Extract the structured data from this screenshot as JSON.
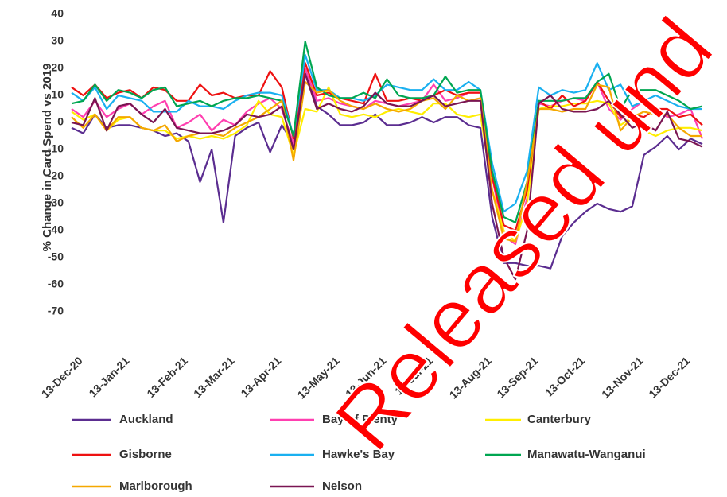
{
  "chart_data": {
    "type": "line",
    "y_label": "% Change in Card Spend vs 2019",
    "watermark": "Released und",
    "legend": "bottom",
    "grid": false,
    "ylim": [
      -70,
      40
    ],
    "yticks": [
      40,
      30,
      20,
      10,
      0,
      -10,
      -20,
      -30,
      -40,
      -50,
      -60,
      -70
    ],
    "categories": [
      "13-Dec-20",
      null,
      null,
      null,
      "13-Jan-21",
      null,
      null,
      null,
      null,
      "13-Feb-21",
      null,
      null,
      null,
      "13-Mar-21",
      null,
      null,
      null,
      "13-Apr-21",
      null,
      null,
      null,
      null,
      "13-May-21",
      null,
      null,
      null,
      "13-Jun-21",
      null,
      null,
      null,
      "13-Jul-21",
      null,
      null,
      null,
      null,
      "13-Aug-21",
      null,
      null,
      null,
      "13-Sep-21",
      null,
      null,
      null,
      "13-Oct-21",
      null,
      null,
      null,
      null,
      "13-Nov-21",
      null,
      null,
      null,
      "13-Dec-21",
      null,
      null
    ],
    "series": [
      {
        "name": "Auckland",
        "color": "#5b2d90",
        "values": [
          -2,
          -4,
          3,
          -2,
          -1,
          -1,
          -2,
          -3,
          -5,
          -4,
          -7,
          -22,
          -10,
          -37,
          -5,
          -2,
          0,
          -11,
          -1,
          -8,
          20,
          6,
          3,
          -1,
          -1,
          0,
          3,
          -1,
          -1,
          0,
          2,
          0,
          2,
          2,
          -1,
          -2,
          -35,
          -52,
          -52,
          -53,
          -53,
          -54,
          -42,
          -37,
          -33,
          -30,
          -32,
          -33,
          -31,
          -12,
          -9,
          -5,
          -10,
          -6,
          -8
        ]
      },
      {
        "name": "Bay of Plenty",
        "color": "#ff3fb0",
        "values": [
          5,
          2,
          8,
          2,
          5,
          7,
          3,
          6,
          8,
          -2,
          0,
          3,
          -3,
          1,
          -1,
          4,
          7,
          9,
          5,
          -8,
          20,
          8,
          9,
          7,
          6,
          5,
          8,
          7,
          6,
          7,
          8,
          14,
          8,
          9,
          11,
          11,
          -20,
          -42,
          -45,
          -28,
          7,
          6,
          8,
          9,
          8,
          15,
          5,
          1,
          5,
          8,
          5,
          2,
          3,
          5,
          -6
        ]
      },
      {
        "name": "Canterbury",
        "color": "#ffee00",
        "values": [
          4,
          1,
          3,
          -3,
          1,
          2,
          -2,
          -3,
          -3,
          -6,
          -5,
          -6,
          -5,
          -6,
          -4,
          -1,
          8,
          3,
          2,
          -12,
          5,
          4,
          13,
          3,
          2,
          3,
          2,
          4,
          5,
          4,
          3,
          7,
          7,
          3,
          2,
          3,
          -25,
          -40,
          -44,
          -30,
          5,
          6,
          6,
          7,
          7,
          8,
          7,
          -1,
          2,
          -3,
          -5,
          -3,
          -2,
          -2,
          -3
        ]
      },
      {
        "name": "Gisborne",
        "color": "#ee1111",
        "values": [
          13,
          10,
          14,
          9,
          11,
          12,
          9,
          13,
          12,
          8,
          8,
          14,
          10,
          11,
          9,
          10,
          10,
          19,
          13,
          -6,
          22,
          10,
          11,
          9,
          8,
          7,
          18,
          8,
          8,
          9,
          8,
          10,
          12,
          10,
          11,
          11,
          -20,
          -38,
          -40,
          -25,
          8,
          5,
          10,
          6,
          8,
          15,
          8,
          2,
          3,
          2,
          5,
          5,
          2,
          3,
          -1
        ]
      },
      {
        "name": "Hawke's Bay",
        "color": "#1ab0f0",
        "values": [
          11,
          8,
          13,
          5,
          10,
          9,
          8,
          4,
          4,
          4,
          8,
          6,
          6,
          5,
          8,
          10,
          11,
          11,
          10,
          -5,
          25,
          12,
          12,
          9,
          9,
          8,
          10,
          14,
          13,
          12,
          12,
          16,
          12,
          12,
          15,
          12,
          -15,
          -33,
          -30,
          -18,
          13,
          10,
          12,
          11,
          12,
          22,
          12,
          14,
          6,
          8,
          10,
          8,
          6,
          5,
          5
        ]
      },
      {
        "name": "Manawatu-Wanganui",
        "color": "#00a651",
        "values": [
          7,
          8,
          14,
          8,
          12,
          11,
          9,
          12,
          13,
          6,
          7,
          8,
          6,
          8,
          9,
          9,
          10,
          9,
          8,
          -5,
          30,
          13,
          10,
          9,
          9,
          11,
          9,
          16,
          10,
          9,
          9,
          10,
          17,
          11,
          12,
          12,
          -18,
          -35,
          -37,
          -22,
          8,
          8,
          8,
          9,
          9,
          15,
          18,
          5,
          12,
          12,
          12,
          10,
          8,
          5,
          6
        ]
      },
      {
        "name": "Marlborough",
        "color": "#f5a800",
        "values": [
          2,
          -2,
          3,
          -3,
          2,
          2,
          -2,
          -3,
          -1,
          -7,
          -5,
          -4,
          -4,
          -5,
          -2,
          0,
          2,
          5,
          8,
          -14,
          15,
          11,
          12,
          8,
          6,
          5,
          7,
          5,
          4,
          5,
          8,
          9,
          5,
          10,
          8,
          9,
          -25,
          -43,
          -44,
          -22,
          5,
          5,
          4,
          5,
          5,
          14,
          13,
          -3,
          2,
          4,
          3,
          3,
          -2,
          -5,
          -5
        ]
      },
      {
        "name": "Nelson",
        "color": "#7a1552",
        "values": [
          0,
          -1,
          9,
          -3,
          6,
          7,
          3,
          0,
          5,
          -2,
          -3,
          -4,
          -4,
          -3,
          -1,
          3,
          2,
          3,
          6,
          -10,
          18,
          5,
          7,
          5,
          4,
          6,
          11,
          7,
          6,
          6,
          8,
          10,
          6,
          7,
          8,
          8,
          -30,
          -50,
          -58,
          -40,
          7,
          10,
          5,
          4,
          4,
          5,
          8,
          3,
          -2,
          0,
          -3,
          4,
          -6,
          -7,
          -9
        ]
      }
    ]
  }
}
